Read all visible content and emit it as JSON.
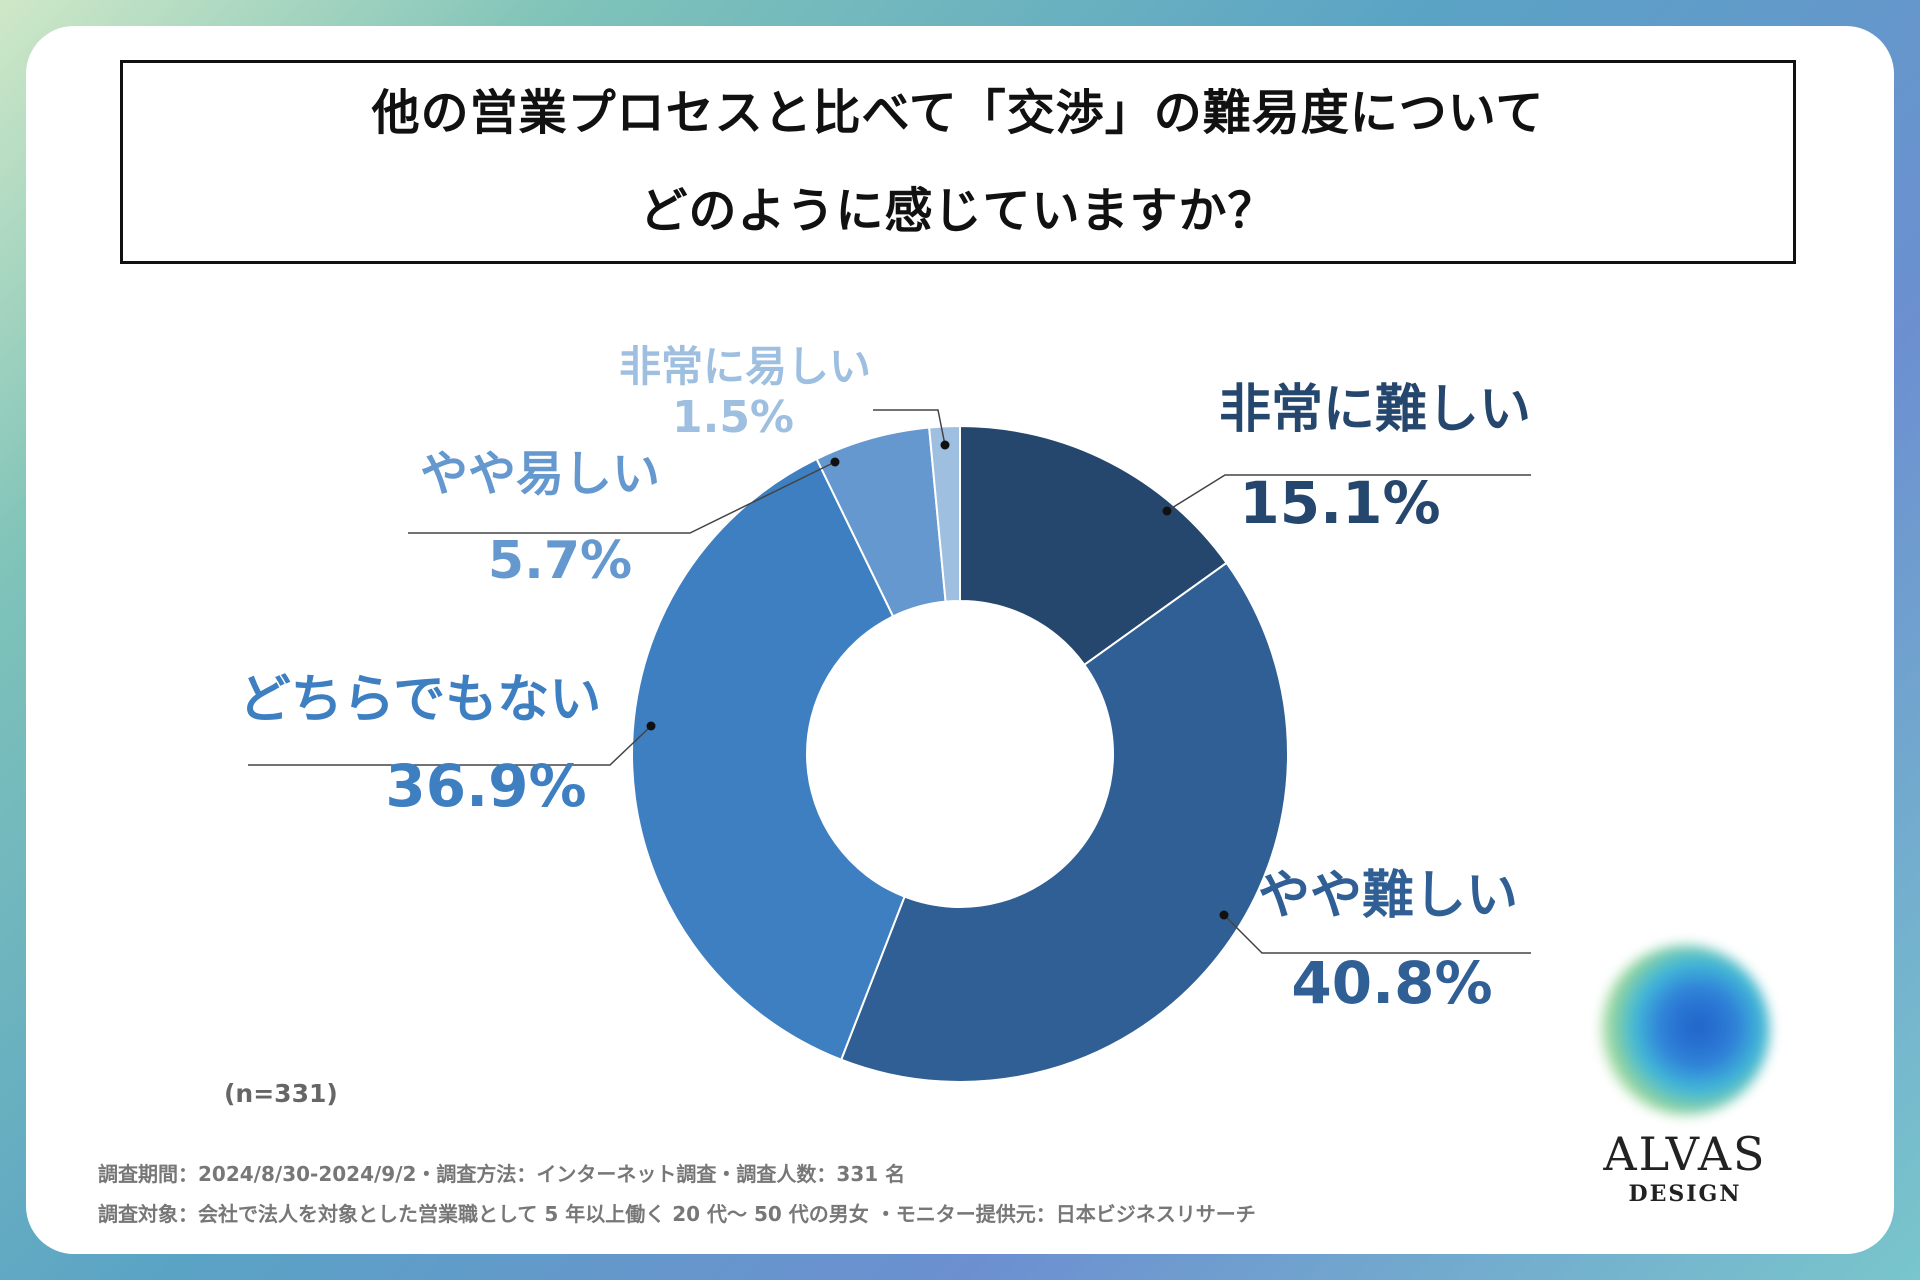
{
  "title": {
    "line1": "他の営業プロセスと比べて「交渉」の難易度について",
    "line2": "どのように感じていますか？"
  },
  "chart_data": {
    "type": "pie",
    "variant": "donut",
    "title": "他の営業プロセスと比べて「交渉」の難易度について どのように感じていますか？",
    "categories": [
      "非常に難しい",
      "やや難しい",
      "どちらでもない",
      "やや易しい",
      "非常に易しい"
    ],
    "values": [
      15.1,
      40.8,
      36.9,
      5.7,
      1.5
    ],
    "value_labels": [
      "15.1%",
      "40.8%",
      "36.9%",
      "5.7%",
      "1.5%"
    ],
    "colors": [
      "#25476d",
      "#2f5f94",
      "#3e7fc1",
      "#6598cf",
      "#9ebfe0"
    ],
    "label_colors": [
      "#25476d",
      "#2f5f94",
      "#3e7fc1",
      "#6598cf",
      "#9ebfe0"
    ],
    "n_label": "(n=331)"
  },
  "footnotes": {
    "line1": "調査期間：2024/8/30-2024/9/2・調査方法：インターネット調査・調査人数：331 名",
    "line2": "調査対象：会社で法人を対象とした営業職として 5 年以上働く 20 代～ 50 代の男女 ・モニター提供元：日本ビジネスリサーチ"
  },
  "logo": {
    "name": "ALVAS",
    "sub": "DESIGN"
  }
}
